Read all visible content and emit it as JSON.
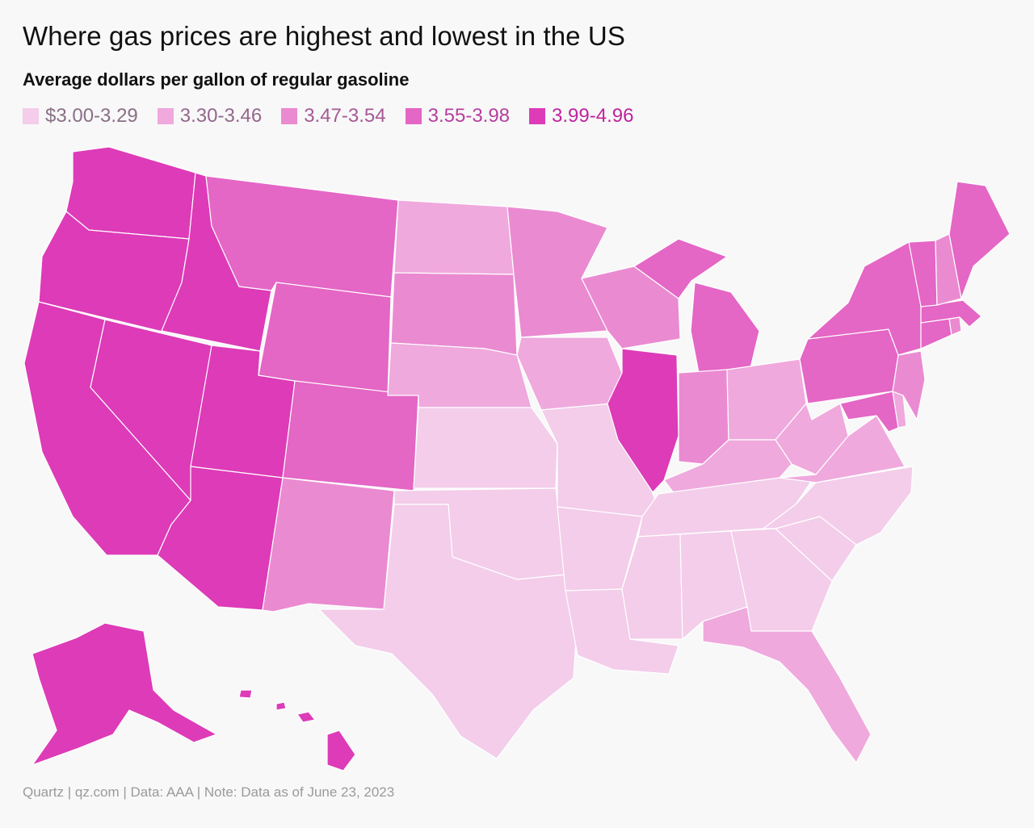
{
  "title": "Where gas prices are highest and lowest in the US",
  "subtitle": "Average dollars per gallon of regular gasoline",
  "legend": [
    {
      "label": "$3.00-3.29",
      "color": "#f3cdea",
      "text_color": "#8a6f85"
    },
    {
      "label": "3.30-3.46",
      "color": "#efa9dd",
      "text_color": "#95678d"
    },
    {
      "label": "3.47-3.54",
      "color": "#ea8ad1",
      "text_color": "#a55996"
    },
    {
      "label": "3.55-3.98",
      "color": "#e466c5",
      "text_color": "#b5409f"
    },
    {
      "label": "3.99-4.96",
      "color": "#dd3bb8",
      "text_color": "#c0239e"
    }
  ],
  "footer": "Quartz | qz.com | Data: AAA | Note: Data as of June 23, 2023",
  "chart_data": {
    "type": "choropleth",
    "bins": [
      "$3.00-3.29",
      "3.30-3.46",
      "3.47-3.54",
      "3.55-3.98",
      "3.99-4.96"
    ],
    "states": [
      {
        "state": "Washington",
        "bin": 4
      },
      {
        "state": "Oregon",
        "bin": 4
      },
      {
        "state": "California",
        "bin": 4
      },
      {
        "state": "Nevada",
        "bin": 4
      },
      {
        "state": "Idaho",
        "bin": 4
      },
      {
        "state": "Utah",
        "bin": 4
      },
      {
        "state": "Arizona",
        "bin": 4
      },
      {
        "state": "Illinois",
        "bin": 4
      },
      {
        "state": "Alaska",
        "bin": 4
      },
      {
        "state": "Hawaii",
        "bin": 4
      },
      {
        "state": "Montana",
        "bin": 3
      },
      {
        "state": "Wyoming",
        "bin": 3
      },
      {
        "state": "Colorado",
        "bin": 3
      },
      {
        "state": "Michigan",
        "bin": 3
      },
      {
        "state": "Pennsylvania",
        "bin": 3
      },
      {
        "state": "New York",
        "bin": 3
      },
      {
        "state": "Vermont",
        "bin": 3
      },
      {
        "state": "Maine",
        "bin": 3
      },
      {
        "state": "Massachusetts",
        "bin": 3
      },
      {
        "state": "Connecticut",
        "bin": 3
      },
      {
        "state": "Maryland",
        "bin": 3
      },
      {
        "state": "New Mexico",
        "bin": 2
      },
      {
        "state": "South Dakota",
        "bin": 2
      },
      {
        "state": "Minnesota",
        "bin": 2
      },
      {
        "state": "Wisconsin",
        "bin": 2
      },
      {
        "state": "Indiana",
        "bin": 2
      },
      {
        "state": "New Hampshire",
        "bin": 2
      },
      {
        "state": "New Jersey",
        "bin": 2
      },
      {
        "state": "Rhode Island",
        "bin": 2
      },
      {
        "state": "North Dakota",
        "bin": 1
      },
      {
        "state": "Nebraska",
        "bin": 1
      },
      {
        "state": "Iowa",
        "bin": 1
      },
      {
        "state": "Ohio",
        "bin": 1
      },
      {
        "state": "Kentucky",
        "bin": 1
      },
      {
        "state": "West Virginia",
        "bin": 1
      },
      {
        "state": "Virginia",
        "bin": 1
      },
      {
        "state": "Delaware",
        "bin": 1
      },
      {
        "state": "Florida",
        "bin": 1
      },
      {
        "state": "Kansas",
        "bin": 0
      },
      {
        "state": "Oklahoma",
        "bin": 0
      },
      {
        "state": "Texas",
        "bin": 0
      },
      {
        "state": "Missouri",
        "bin": 0
      },
      {
        "state": "Arkansas",
        "bin": 0
      },
      {
        "state": "Louisiana",
        "bin": 0
      },
      {
        "state": "Mississippi",
        "bin": 0
      },
      {
        "state": "Alabama",
        "bin": 0
      },
      {
        "state": "Georgia",
        "bin": 0
      },
      {
        "state": "Tennessee",
        "bin": 0
      },
      {
        "state": "South Carolina",
        "bin": 0
      },
      {
        "state": "North Carolina",
        "bin": 0
      }
    ]
  }
}
